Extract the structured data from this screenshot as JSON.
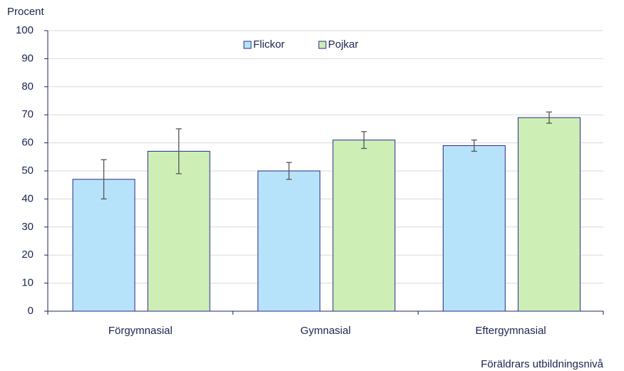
{
  "chart_data": {
    "type": "bar",
    "y_label": "Procent",
    "x_label": "Föräldrars utbildningsnivå",
    "categories": [
      "Förgymnasial",
      "Gymnasial",
      "Eftergymnasial"
    ],
    "series": [
      {
        "name": "Flickor",
        "color": "#b7e3fa",
        "values": [
          47,
          50,
          59
        ],
        "errors": [
          7,
          3,
          2
        ]
      },
      {
        "name": "Pojkar",
        "color": "#cdefb6",
        "values": [
          57,
          61,
          69
        ],
        "errors": [
          8,
          3,
          2
        ]
      }
    ],
    "ylim": [
      0,
      100
    ],
    "yticks": [
      0,
      10,
      20,
      30,
      40,
      50,
      60,
      70,
      80,
      90,
      100
    ],
    "grid": true,
    "legend": "top"
  }
}
